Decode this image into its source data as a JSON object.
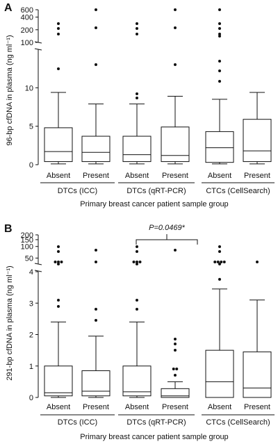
{
  "chart_data": [
    {
      "type": "box",
      "panel_label": "A",
      "ylabel": "96-bp cfDNA in plasma (ng ml⁻¹)",
      "xlabel": "Primary breast cancer patient sample group",
      "y_scale": "broken",
      "y_lower_range": [
        0,
        15
      ],
      "y_upper_ticks": [
        100,
        200,
        400,
        600
      ],
      "y_ticks": [
        {
          "label": "0",
          "value": 0
        },
        {
          "label": "5",
          "value": 5
        },
        {
          "label": "10",
          "value": 10
        },
        {
          "label": "100",
          "value": 100
        },
        {
          "label": "200",
          "value": 200
        },
        {
          "label": "400",
          "value": 400
        },
        {
          "label": "600",
          "value": 600
        }
      ],
      "groups": [
        "DTCs (ICC)",
        "DTCs (qRT-PCR)",
        "CTCs (CellSearch)"
      ],
      "categories": [
        "Absent",
        "Present",
        "Absent",
        "Present",
        "Absent",
        "Present"
      ],
      "boxes": [
        {
          "min": 0.1,
          "q1": 0.4,
          "median": 1.7,
          "q3": 4.8,
          "max": 9.4,
          "outliers": [
            12.5,
            160,
            215,
            280
          ]
        },
        {
          "min": 0.1,
          "q1": 0.4,
          "median": 1.6,
          "q3": 3.7,
          "max": 7.9,
          "outliers": [
            13.0,
            220,
            600
          ]
        },
        {
          "min": 0.1,
          "q1": 0.4,
          "median": 1.3,
          "q3": 3.7,
          "max": 7.9,
          "outliers": [
            8.7,
            9.2,
            160,
            215,
            280
          ]
        },
        {
          "min": 0.1,
          "q1": 0.4,
          "median": 1.2,
          "q3": 4.9,
          "max": 8.9,
          "outliers": [
            13.0,
            220,
            600
          ]
        },
        {
          "min": 0.1,
          "q1": 0.3,
          "median": 2.2,
          "q3": 4.3,
          "max": 8.5,
          "outliers": [
            10.8,
            12.2,
            13.5,
            140,
            160,
            215,
            280,
            600
          ]
        },
        {
          "min": 0.1,
          "q1": 0.4,
          "median": 1.8,
          "q3": 5.9,
          "max": 9.4,
          "outliers": []
        }
      ]
    },
    {
      "type": "box",
      "panel_label": "B",
      "ylabel": "291-bp cfDNA in plasma (ng ml⁻¹)",
      "xlabel": "Primary breast cancer patient sample group",
      "y_scale": "broken",
      "y_lower_range": [
        0,
        4
      ],
      "y_upper_ticks": [
        50,
        100,
        150,
        200
      ],
      "y_ticks": [
        {
          "label": "0",
          "value": 0
        },
        {
          "label": "1",
          "value": 1
        },
        {
          "label": "2",
          "value": 2
        },
        {
          "label": "3",
          "value": 3
        },
        {
          "label": "4",
          "value": 4
        },
        {
          "label": "50",
          "value": 50
        },
        {
          "label": "100",
          "value": 100
        },
        {
          "label": "150",
          "value": 150
        },
        {
          "label": "200",
          "value": 200
        }
      ],
      "groups": [
        "DTCs (ICC)",
        "DTCs (qRT-PCR)",
        "CTCs (CellSearch)"
      ],
      "categories": [
        "Absent",
        "Present",
        "Absent",
        "Present",
        "Absent",
        "Present"
      ],
      "boxes": [
        {
          "min": 0.0,
          "q1": 0.05,
          "median": 0.15,
          "q3": 1.0,
          "max": 2.4,
          "outliers": [
            2.9,
            3.1,
            35,
            40,
            40,
            40,
            75,
            100
          ]
        },
        {
          "min": 0.0,
          "q1": 0.05,
          "median": 0.2,
          "q3": 0.85,
          "max": 1.95,
          "outliers": [
            2.45,
            2.8,
            40,
            80
          ]
        },
        {
          "min": 0.0,
          "q1": 0.05,
          "median": 0.18,
          "q3": 1.0,
          "max": 2.4,
          "outliers": [
            2.8,
            3.1,
            35,
            40,
            40,
            40,
            75,
            100
          ]
        },
        {
          "min": 0.0,
          "q1": 0.0,
          "median": 0.05,
          "q3": 0.28,
          "max": 0.5,
          "outliers": [
            0.7,
            0.9,
            0.9,
            1.5,
            1.7,
            1.85,
            80
          ]
        },
        {
          "min": 0.0,
          "q1": 0.0,
          "median": 0.5,
          "q3": 1.5,
          "max": 3.45,
          "outliers": [
            3.75,
            35,
            40,
            40,
            40,
            40,
            75,
            100
          ]
        },
        {
          "min": 0.0,
          "q1": 0.0,
          "median": 0.3,
          "q3": 1.45,
          "max": 3.1,
          "outliers": [
            40
          ]
        }
      ],
      "annotation": {
        "text": "P=0.0469*",
        "between": [
          2,
          3
        ]
      }
    }
  ]
}
